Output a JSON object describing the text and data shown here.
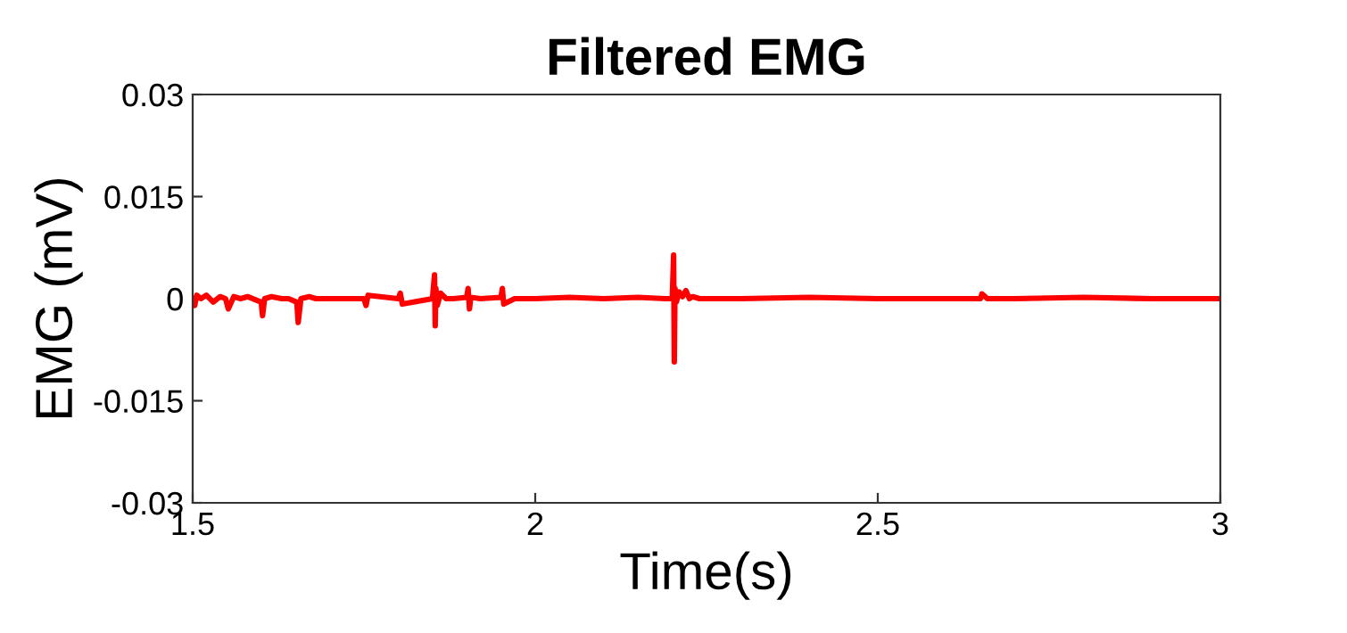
{
  "chart_data": {
    "type": "line",
    "title": "Filtered EMG",
    "xlabel": "Time(s)",
    "ylabel": "EMG (mV)",
    "xlim": [
      1.5,
      3
    ],
    "ylim": [
      -0.03,
      0.03
    ],
    "xticks": [
      1.5,
      2,
      2.5,
      3
    ],
    "yticks": [
      -0.03,
      -0.015,
      0,
      0.015,
      0.03
    ],
    "grid": false,
    "marker": "none",
    "line_style": "solid",
    "series": [
      {
        "color": "#ff0000",
        "x": [
          1.5,
          1.503,
          1.506,
          1.512,
          1.52,
          1.53,
          1.54,
          1.548,
          1.552,
          1.56,
          1.57,
          1.58,
          1.6,
          1.602,
          1.605,
          1.615,
          1.63,
          1.64,
          1.652,
          1.654,
          1.658,
          1.67,
          1.68,
          1.7,
          1.75,
          1.753,
          1.756,
          1.8,
          1.803,
          1.806,
          1.85,
          1.853,
          1.854,
          1.855,
          1.857,
          1.862,
          1.87,
          1.88,
          1.9,
          1.902,
          1.904,
          1.906,
          1.92,
          1.95,
          1.952,
          1.954,
          1.97,
          2.0,
          2.05,
          2.1,
          2.15,
          2.19,
          2.2,
          2.202,
          2.203,
          2.204,
          2.206,
          2.21,
          2.215,
          2.22,
          2.225,
          2.23,
          2.24,
          2.3,
          2.4,
          2.5,
          2.6,
          2.65,
          2.652,
          2.66,
          2.7,
          2.8,
          2.9,
          3.0
        ],
        "values": [
          0,
          -0.001,
          0.0005,
          0,
          0.0005,
          -0.0005,
          0.0003,
          0,
          -0.0015,
          0.0003,
          0,
          0.0003,
          -0.0005,
          -0.0025,
          0,
          0.0003,
          0,
          0,
          -0.0005,
          -0.0035,
          0,
          0.0003,
          0,
          0,
          0,
          -0.001,
          0.0005,
          0,
          0.0008,
          -0.0008,
          0,
          0.0035,
          -0.004,
          0.0015,
          -0.001,
          0.0008,
          0,
          0,
          0.0002,
          0.0015,
          -0.0015,
          0.0002,
          0,
          0.0002,
          0.0015,
          -0.0008,
          0,
          0,
          0.0002,
          0,
          0.0002,
          0,
          0,
          0.0064,
          -0.0093,
          0.0015,
          -0.0005,
          0.001,
          0.0003,
          0.0012,
          0,
          0.0003,
          0,
          0,
          0.0002,
          0,
          0,
          0,
          0.0007,
          0,
          0,
          0.0002,
          0,
          0
        ]
      }
    ]
  }
}
